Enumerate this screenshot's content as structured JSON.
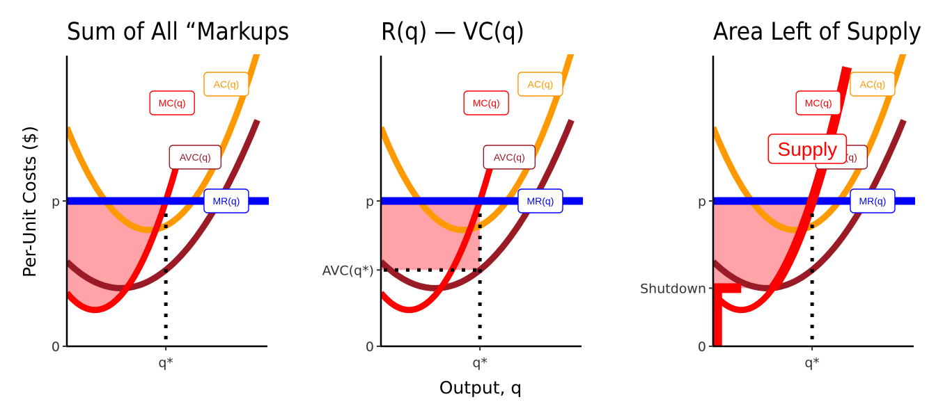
{
  "figure": {
    "ylabel": "Per-Unit Costs ($)",
    "xlabel": "Output, q"
  },
  "chart_data": [
    {
      "type": "line",
      "title": "Sum of All “Markups",
      "x_ticks": [
        "q*"
      ],
      "y_ticks": [
        "0",
        "p"
      ],
      "shading": "sum-of-markups",
      "series": [
        {
          "name": "MC(q)",
          "color": "#ff0000",
          "a": 0.25,
          "b": 0.14,
          "c": 6
        },
        {
          "name": "AC(q)",
          "color": "#ff9900",
          "a": 0.8,
          "b": 0.41,
          "c": 4.2
        },
        {
          "name": "AVC(q)",
          "color": "#9a1b26",
          "a": 0.4,
          "b": 0.27,
          "c": 2.5
        },
        {
          "name": "MR(q)",
          "color": "#0000ff",
          "price": 1.0
        }
      ]
    },
    {
      "type": "line",
      "title": "R(q) — VC(q)",
      "x_ticks": [
        "q*"
      ],
      "y_ticks": [
        "0",
        "AVC(q*)",
        "p"
      ],
      "shading": "revenue-minus-vc",
      "series": [
        {
          "name": "MC(q)",
          "color": "#ff0000",
          "a": 0.25,
          "b": 0.14,
          "c": 6
        },
        {
          "name": "AC(q)",
          "color": "#ff9900",
          "a": 0.8,
          "b": 0.41,
          "c": 4.2
        },
        {
          "name": "AVC(q)",
          "color": "#9a1b26",
          "a": 0.4,
          "b": 0.27,
          "c": 2.5
        },
        {
          "name": "MR(q)",
          "color": "#0000ff",
          "price": 1.0
        }
      ]
    },
    {
      "type": "line",
      "title": "Area Left of Supply",
      "x_ticks": [
        "q*"
      ],
      "y_ticks": [
        "0",
        "Shutdown",
        "p"
      ],
      "shading": "left-of-supply",
      "supply_label": "Supply",
      "series": [
        {
          "name": "MC(q)",
          "color": "#ff0000",
          "a": 0.25,
          "b": 0.14,
          "c": 6
        },
        {
          "name": "AC(q)",
          "color": "#ff9900",
          "a": 0.8,
          "b": 0.41,
          "c": 4.2
        },
        {
          "name": "AVC(q)",
          "color": "#9a1b26",
          "a": 0.4,
          "b": 0.27,
          "c": 2.5
        },
        {
          "name": "MR(q)",
          "color": "#0000ff",
          "price": 1.0
        }
      ]
    }
  ]
}
